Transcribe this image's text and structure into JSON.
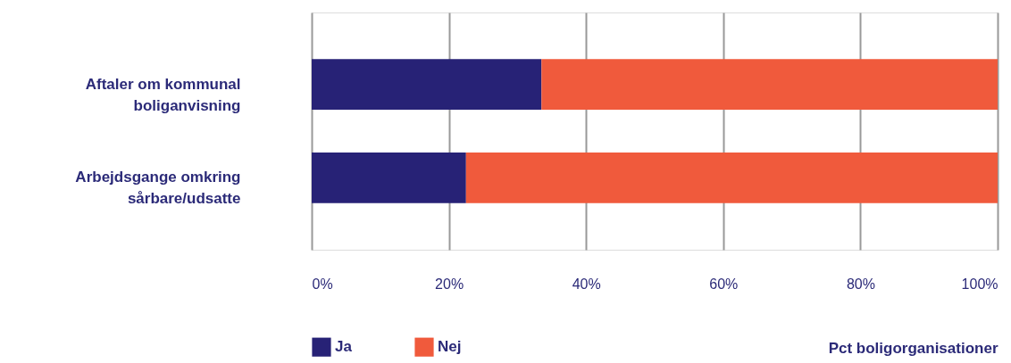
{
  "chart_data": {
    "type": "bar",
    "orientation": "horizontal",
    "stacked": true,
    "categories": [
      "Aftaler om kommunal boliganvisning",
      "Arbejdsgange omkring sårbare/udsatte"
    ],
    "series": [
      {
        "name": "Ja",
        "color": "#272276",
        "values": [
          33.5,
          22.5
        ]
      },
      {
        "name": "Nej",
        "color": "#f05a3c",
        "values": [
          66.5,
          77.5
        ]
      }
    ],
    "xlabel": "Pct boligorganisationer",
    "xlim": [
      0,
      100
    ],
    "xticks": [
      {
        "value": 0,
        "label": "0%"
      },
      {
        "value": 20,
        "label": "20%"
      },
      {
        "value": 40,
        "label": "40%"
      },
      {
        "value": 60,
        "label": "60%"
      },
      {
        "value": 80,
        "label": "80%"
      },
      {
        "value": 100,
        "label": "100%"
      }
    ],
    "grid": "x",
    "legend": "bottom"
  }
}
